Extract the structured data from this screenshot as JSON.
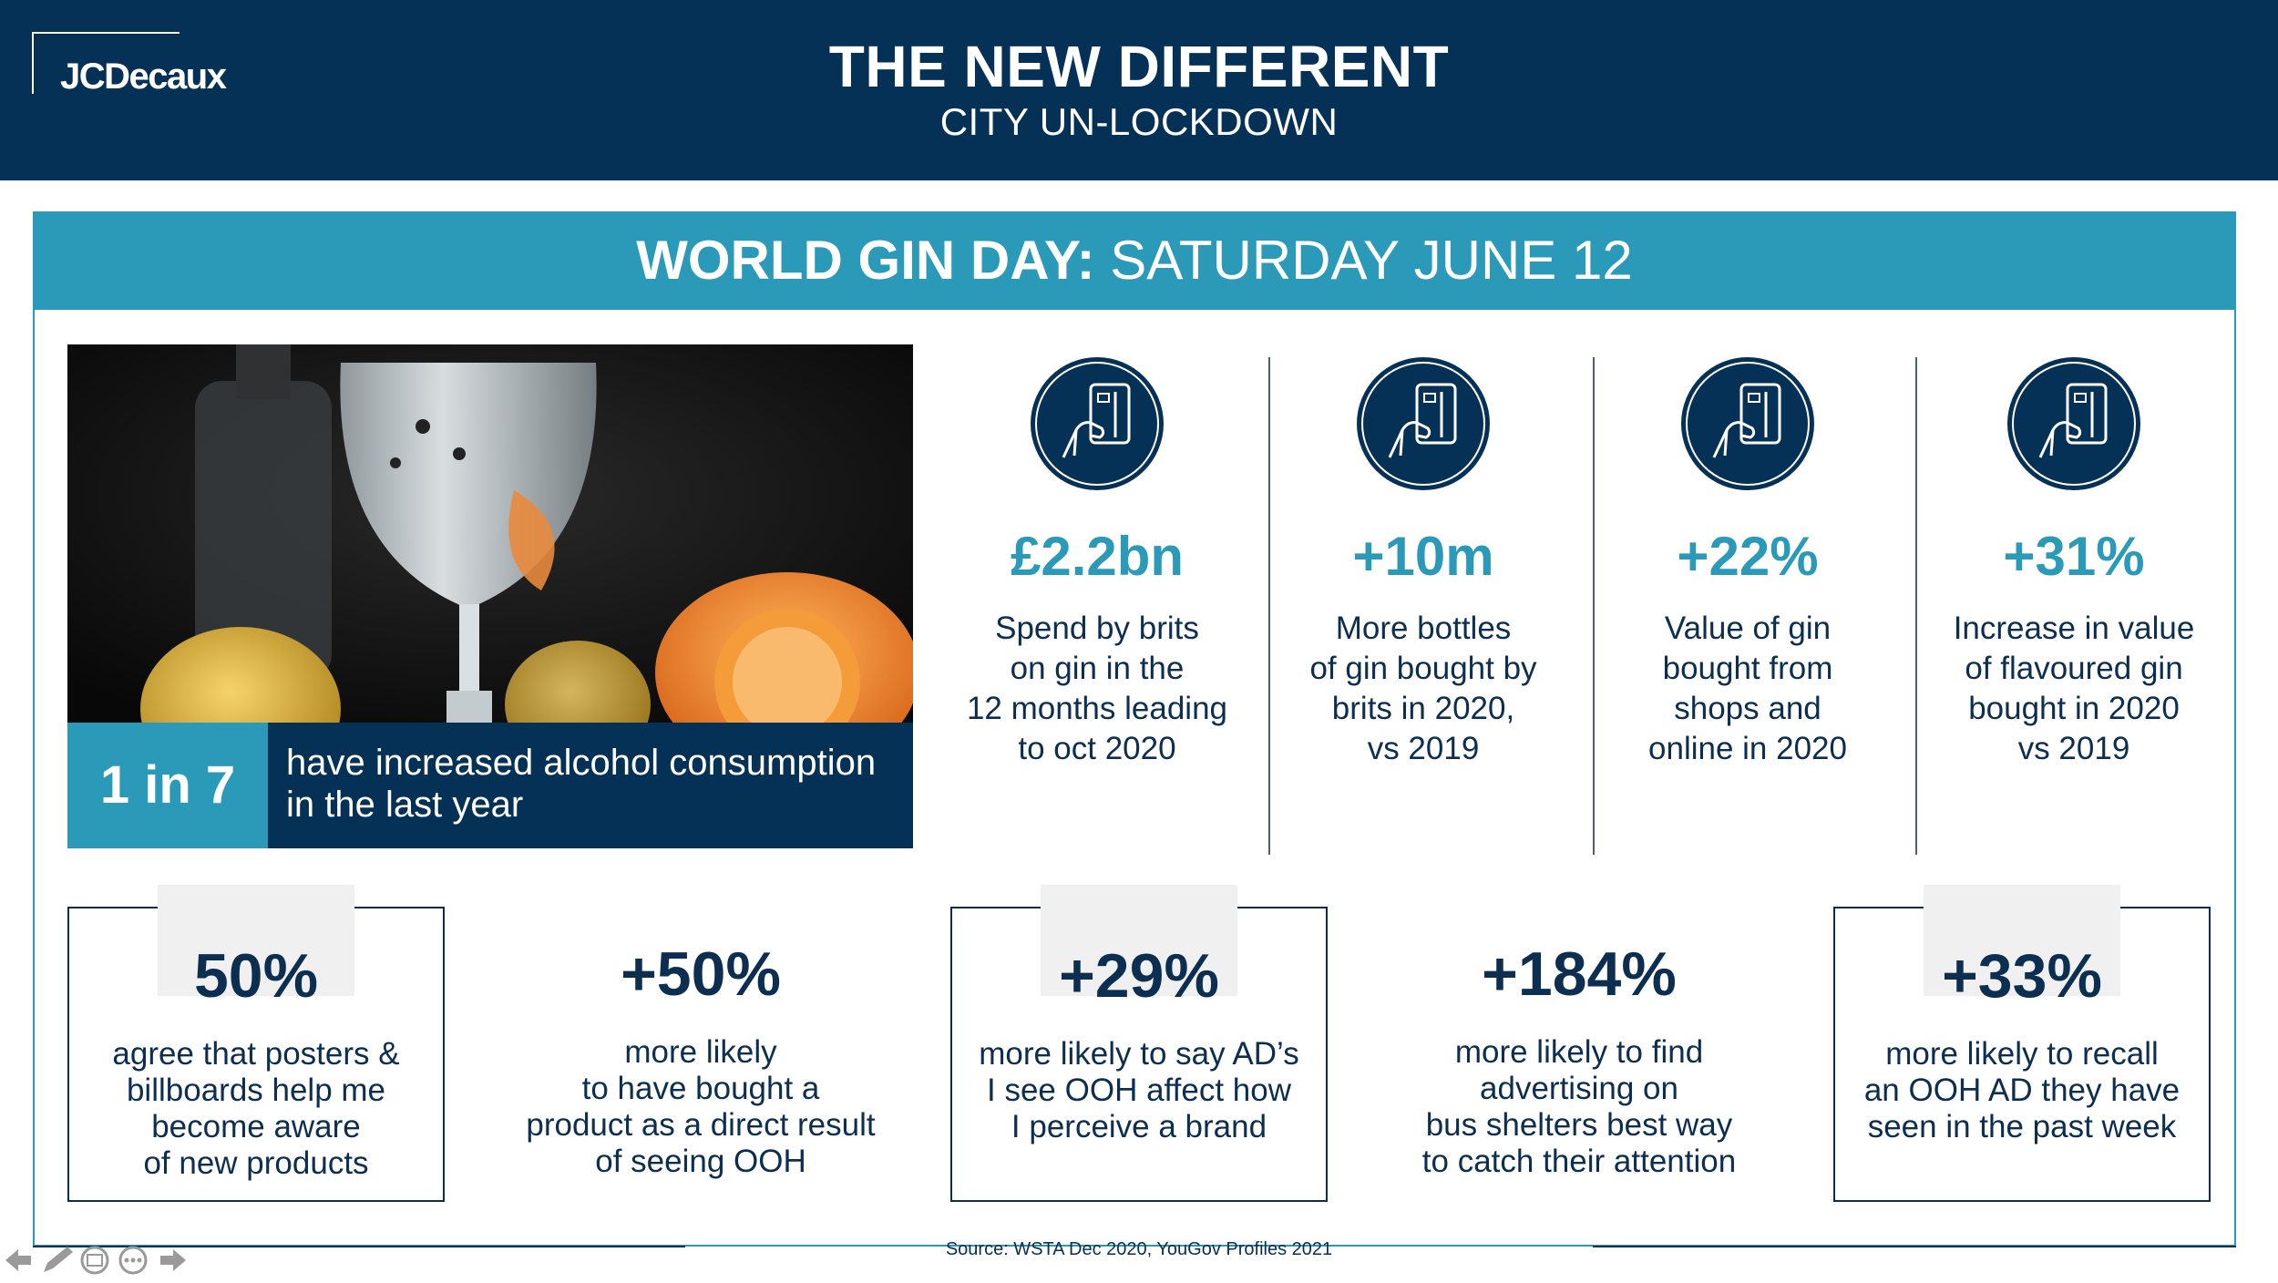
{
  "header": {
    "logo": "JCDecaux",
    "title": "THE NEW DIFFERENT",
    "subtitle": "CITY UN-LOCKDOWN"
  },
  "banner": {
    "bold": "WORLD GIN DAY:",
    "rest": " SATURDAY JUNE 12"
  },
  "callout": {
    "number": "1 in 7",
    "text": "have increased alcohol consumption in the last year"
  },
  "stats": [
    {
      "icon": "hand-card-payment-icon",
      "value": "£2.2bn",
      "desc": "Spend by brits\non gin in the\n12 months leading\nto oct 2020"
    },
    {
      "icon": "hand-card-payment-icon",
      "value": "+10m",
      "desc": "More bottles\nof gin bought by\nbrits in 2020,\nvs 2019"
    },
    {
      "icon": "hand-card-payment-icon",
      "value": "+22%",
      "desc": "Value of gin\nbought from\nshops and\nonline in 2020"
    },
    {
      "icon": "hand-card-payment-icon",
      "value": "+31%",
      "desc": "Increase in value\nof flavoured gin\nbought in 2020\nvs 2019"
    }
  ],
  "ooh": [
    {
      "value": "50%",
      "desc": "agree that posters &\nbillboards help me\nbecome aware\nof new products"
    },
    {
      "value": "+50%",
      "desc": "more likely\nto have bought a\nproduct as a direct result\nof seeing OOH"
    },
    {
      "value": "+29%",
      "desc": "more likely to say AD’s\nI see OOH affect how\nI perceive a brand"
    },
    {
      "value": "+184%",
      "desc": "more likely to find\nadvertising on\nbus shelters best way\nto catch their attention"
    },
    {
      "value": "+33%",
      "desc": "more likely to recall\nan OOH AD they have\nseen in the past week"
    }
  ],
  "source": "Source: WSTA Dec 2020, YouGov Profiles 2021",
  "colors": {
    "navy": "#053157",
    "teal": "#2a9ab8",
    "text": "#0c2e50"
  },
  "nav_icons": [
    "prev-arrow-icon",
    "pen-icon",
    "slides-icon",
    "more-icon",
    "next-arrow-icon"
  ]
}
